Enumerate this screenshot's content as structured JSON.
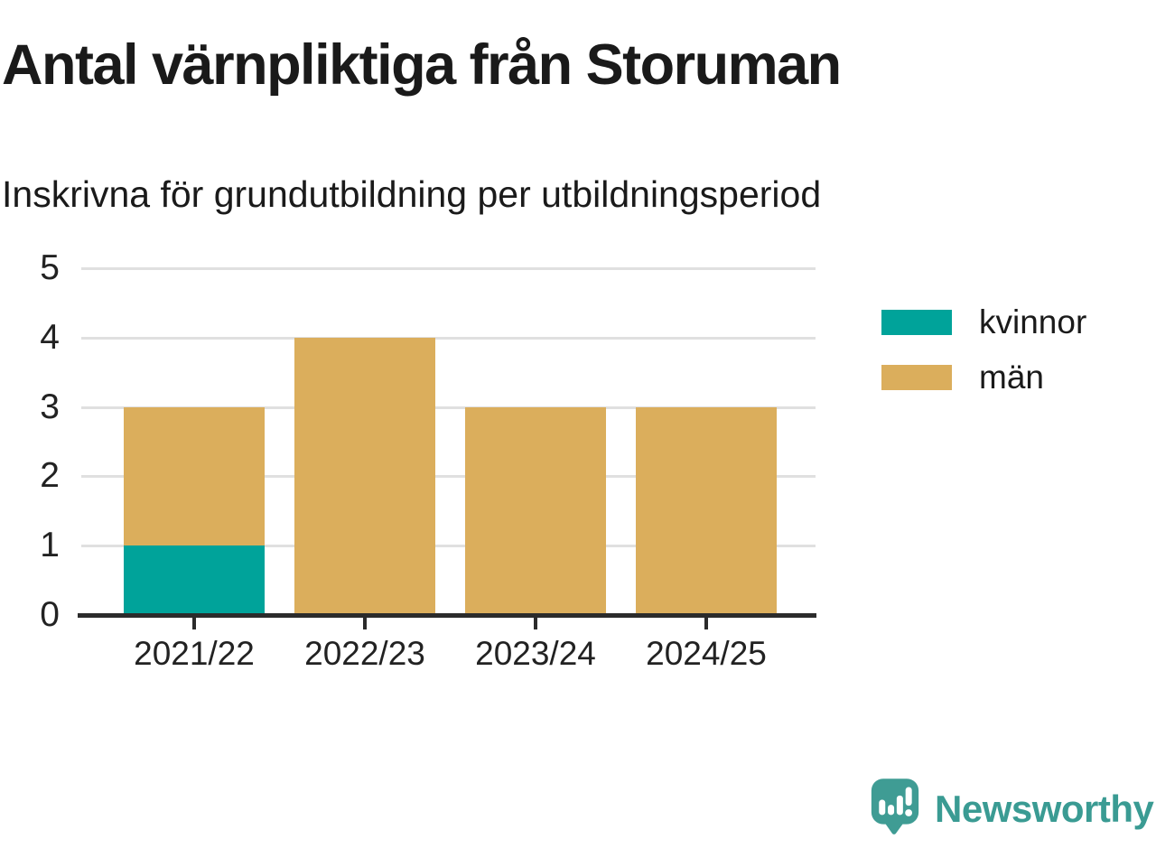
{
  "header": {
    "title": "Antal värnpliktiga från Storuman",
    "subtitle": "Inskrivna för grundutbildning per utbildningsperiod"
  },
  "colors": {
    "kvinnor": "#00a39a",
    "man": "#dbae5c",
    "grid": "#e0e0e0",
    "axis": "#2b2b2b",
    "logo_teal": "#3f9c94"
  },
  "legend": [
    {
      "label": "kvinnor",
      "color": "#00a39a"
    },
    {
      "label": "män",
      "color": "#dbae5c"
    }
  ],
  "chart_data": {
    "type": "bar",
    "stacked": true,
    "title": "Antal värnpliktiga från Storuman",
    "subtitle": "Inskrivna för grundutbildning per utbildningsperiod",
    "categories": [
      "2021/22",
      "2022/23",
      "2023/24",
      "2024/25"
    ],
    "series": [
      {
        "name": "kvinnor",
        "color": "#00a39a",
        "values": [
          1,
          0,
          0,
          0
        ]
      },
      {
        "name": "män",
        "color": "#dbae5c",
        "values": [
          2,
          4,
          3,
          3
        ]
      }
    ],
    "totals": [
      3,
      4,
      3,
      3
    ],
    "xlabel": "",
    "ylabel": "",
    "ylim": [
      0,
      5
    ],
    "yticks": [
      0,
      1,
      2,
      3,
      4,
      5
    ],
    "grid": true,
    "legend_position": "right"
  },
  "footer": {
    "brand": "Newsworthy"
  }
}
